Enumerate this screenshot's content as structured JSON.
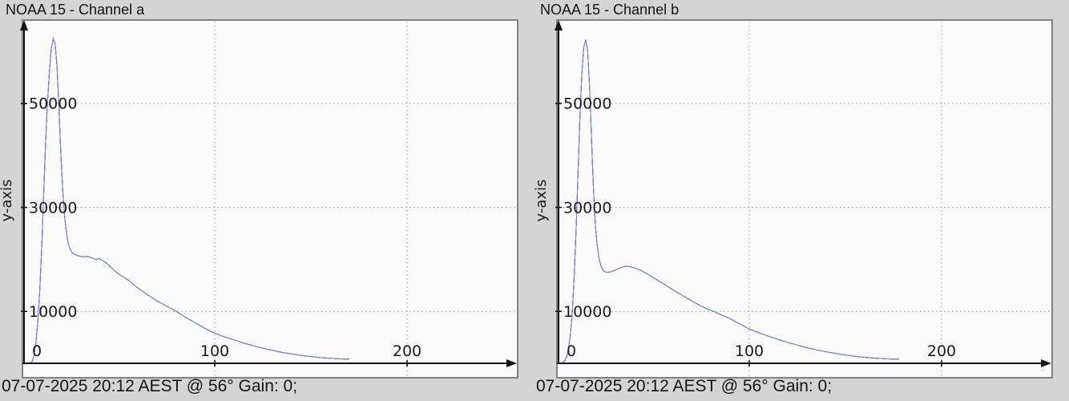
{
  "colors": {
    "background": "#d4d4d4",
    "plot_background": "#fbfbfb",
    "plot_border": "#828282",
    "axis": "#141414",
    "grid": "#9e9e9e",
    "text": "#1a1a1a",
    "curve": "#7d7dd2"
  },
  "panels": [
    {
      "title": "NOAA 15 - Channel a",
      "y_axis_label": "y-axis",
      "status_line": "07-07-2025 20:12 AEST @ 56° Gain: 0;"
    },
    {
      "title": "NOAA 15 - Channel b",
      "y_axis_label": "y-axis",
      "status_line": "07-07-2025 20:12 AEST @ 56° Gain: 0;"
    }
  ],
  "chart_data": [
    {
      "type": "line",
      "title": "NOAA 15 - Channel a",
      "xlabel": "",
      "ylabel": "y-axis",
      "caption": "07-07-2025 20:12 AEST @ 56° Gain: 0;",
      "xlim": [
        0,
        255
      ],
      "ylim": [
        0,
        65000
      ],
      "xticks": [
        0,
        100,
        200
      ],
      "yticks": [
        10000,
        30000,
        50000
      ],
      "grid": true,
      "legend": false,
      "line_color": "#7d7dd2",
      "x": [
        4,
        5,
        6,
        7,
        8,
        9,
        10,
        11,
        12,
        13,
        14,
        15,
        16,
        17,
        18,
        19,
        20,
        21,
        22,
        23,
        24,
        25,
        26,
        28,
        30,
        32,
        34,
        36,
        38,
        40,
        42,
        44,
        46,
        48,
        50,
        55,
        60,
        65,
        70,
        75,
        80,
        85,
        90,
        95,
        100,
        105,
        110,
        115,
        120,
        125,
        130,
        135,
        140,
        145,
        150,
        155,
        160,
        165,
        170
      ],
      "y": [
        100,
        300,
        1500,
        4000,
        8000,
        14000,
        22000,
        32000,
        42000,
        50000,
        56000,
        60500,
        62500,
        61500,
        57000,
        49000,
        40000,
        33000,
        28000,
        24800,
        22800,
        21800,
        21200,
        20800,
        20600,
        20500,
        20600,
        20300,
        20000,
        20100,
        19700,
        19200,
        18500,
        17800,
        17200,
        16000,
        14500,
        13200,
        12000,
        11000,
        10000,
        8800,
        7800,
        6700,
        5800,
        5100,
        4500,
        3900,
        3400,
        2900,
        2500,
        2100,
        1800,
        1500,
        1300,
        1100,
        950,
        850,
        800
      ]
    },
    {
      "type": "line",
      "title": "NOAA 15 - Channel b",
      "xlabel": "",
      "ylabel": "y-axis",
      "caption": "07-07-2025 20:12 AEST @ 56° Gain: 0;",
      "xlim": [
        0,
        255
      ],
      "ylim": [
        0,
        65000
      ],
      "xticks": [
        0,
        100,
        200
      ],
      "yticks": [
        10000,
        30000,
        50000
      ],
      "grid": true,
      "legend": false,
      "line_color": "#7d7dd2",
      "x": [
        3,
        4,
        5,
        6,
        7,
        8,
        9,
        10,
        11,
        12,
        13,
        14,
        15,
        16,
        17,
        18,
        19,
        20,
        21,
        22,
        23,
        24,
        25,
        26,
        28,
        30,
        32,
        34,
        36,
        38,
        40,
        42,
        44,
        46,
        48,
        50,
        55,
        60,
        65,
        70,
        75,
        80,
        85,
        90,
        95,
        100,
        105,
        110,
        115,
        120,
        125,
        130,
        135,
        140,
        145,
        150,
        155,
        160,
        165,
        170,
        175,
        178
      ],
      "y": [
        150,
        500,
        1200,
        2800,
        5500,
        10000,
        17000,
        26000,
        37000,
        48000,
        56000,
        61000,
        62300,
        60000,
        53000,
        43000,
        33500,
        26500,
        22500,
        20000,
        18600,
        17900,
        17600,
        17500,
        17600,
        17900,
        18200,
        18500,
        18700,
        18600,
        18400,
        18100,
        17800,
        17400,
        17000,
        16500,
        15400,
        14200,
        13100,
        12000,
        11000,
        10200,
        9400,
        8600,
        7600,
        6600,
        5900,
        5200,
        4600,
        4000,
        3500,
        3000,
        2600,
        2200,
        1900,
        1600,
        1350,
        1150,
        1000,
        880,
        800,
        780
      ]
    }
  ]
}
